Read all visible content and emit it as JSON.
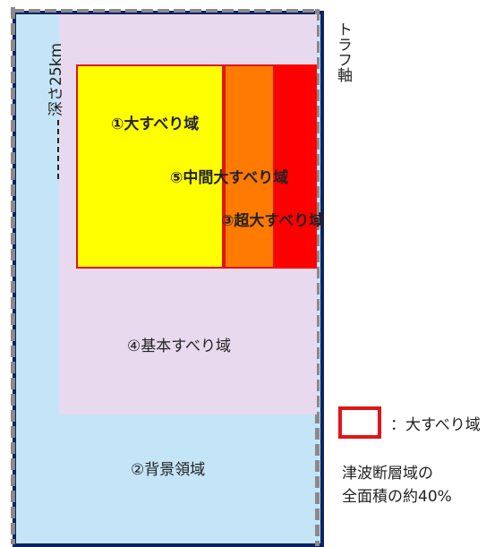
{
  "labels": {
    "depth": "深さ25km",
    "trough_axis": "トラフ軸",
    "large_slip": "①大すべり域",
    "intermediate_slip": "⑤中間大すべり域",
    "super_large_slip": "③超大すべり域",
    "basic_slip": "④基本すべり域",
    "background": "②背景領域"
  },
  "legend": {
    "label": "：大すべり域",
    "note_line1": "津波断層域の",
    "note_line2": "全面積の約40%"
  },
  "colors": {
    "background_zone": "#c4e4f7",
    "basic_zone": "#e8d9ee",
    "large_zone": "#ffff00",
    "intermediate_zone": "#ff7a00",
    "super_large_zone": "#ff0000",
    "outline_red": "#e0151b",
    "frame_navy": "#0d2260"
  }
}
